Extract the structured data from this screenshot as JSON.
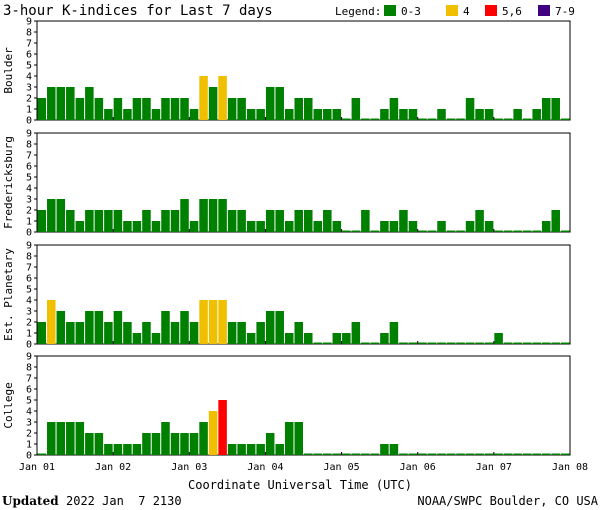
{
  "title": "3-hour K-indices for Last 7 days",
  "legend": {
    "label": "Legend:",
    "items": [
      {
        "label": "0-3",
        "color": "#008000"
      },
      {
        "label": "4",
        "color": "#f0c000"
      },
      {
        "label": "5,6",
        "color": "#ff0000"
      },
      {
        "label": "7-9",
        "color": "#400080"
      }
    ]
  },
  "x_axis": {
    "title": "Coordinate Universal Time (UTC)",
    "tick_labels": [
      "Jan 01",
      "Jan 02",
      "Jan 03",
      "Jan 04",
      "Jan 05",
      "Jan 06",
      "Jan 07",
      "Jan 08"
    ]
  },
  "y_axis": {
    "ticks": [
      "0",
      "1",
      "2",
      "3",
      "4",
      "5",
      "6",
      "7",
      "8",
      "9"
    ]
  },
  "footer": {
    "updated_label": "Updated",
    "updated_value": "2022 Jan  7 2130",
    "source": "NOAA/SWPC Boulder, CO USA"
  },
  "chart_data": [
    {
      "type": "bar",
      "station": "Boulder",
      "ylim": [
        0,
        9
      ],
      "values": [
        2,
        3,
        3,
        3,
        2,
        3,
        2,
        1,
        2,
        1,
        2,
        2,
        1,
        2,
        2,
        2,
        1,
        4,
        3,
        4,
        2,
        2,
        1,
        1,
        3,
        3,
        1,
        2,
        2,
        1,
        1,
        1,
        0,
        2,
        0,
        0,
        1,
        2,
        1,
        1,
        0,
        0,
        1,
        0,
        0,
        2,
        1,
        1,
        0,
        0,
        1,
        0,
        1,
        2,
        2,
        0
      ]
    },
    {
      "type": "bar",
      "station": "Fredericksburg",
      "ylim": [
        0,
        9
      ],
      "values": [
        2,
        3,
        3,
        2,
        1,
        2,
        2,
        2,
        2,
        1,
        1,
        2,
        1,
        2,
        2,
        3,
        1,
        3,
        3,
        3,
        2,
        2,
        1,
        1,
        2,
        2,
        1,
        2,
        2,
        1,
        2,
        1,
        0,
        0,
        2,
        0,
        1,
        1,
        2,
        1,
        0,
        0,
        1,
        0,
        0,
        1,
        2,
        1,
        0,
        0,
        0,
        0,
        0,
        1,
        2,
        0
      ]
    },
    {
      "type": "bar",
      "station": "Est. Planetary",
      "ylim": [
        0,
        9
      ],
      "values": [
        2,
        4,
        3,
        2,
        2,
        3,
        3,
        2,
        3,
        2,
        1,
        2,
        1,
        3,
        2,
        3,
        2,
        4,
        4,
        4,
        2,
        2,
        1,
        2,
        3,
        3,
        1,
        2,
        1,
        0,
        0,
        1,
        1,
        2,
        0,
        0,
        1,
        2,
        0,
        0,
        0,
        0,
        0,
        0,
        0,
        0,
        0,
        0,
        1,
        0,
        0,
        0,
        0,
        0,
        0,
        0
      ]
    },
    {
      "type": "bar",
      "station": "College",
      "ylim": [
        0,
        9
      ],
      "values": [
        0,
        3,
        3,
        3,
        3,
        2,
        2,
        1,
        1,
        1,
        1,
        2,
        2,
        3,
        2,
        2,
        2,
        3,
        4,
        5,
        1,
        1,
        1,
        1,
        2,
        1,
        3,
        3,
        0,
        0,
        0,
        0,
        0,
        0,
        0,
        0,
        1,
        1,
        0,
        0,
        0,
        0,
        0,
        0,
        0,
        0,
        0,
        0,
        0,
        0,
        0,
        0,
        0,
        0,
        0,
        0
      ]
    }
  ]
}
